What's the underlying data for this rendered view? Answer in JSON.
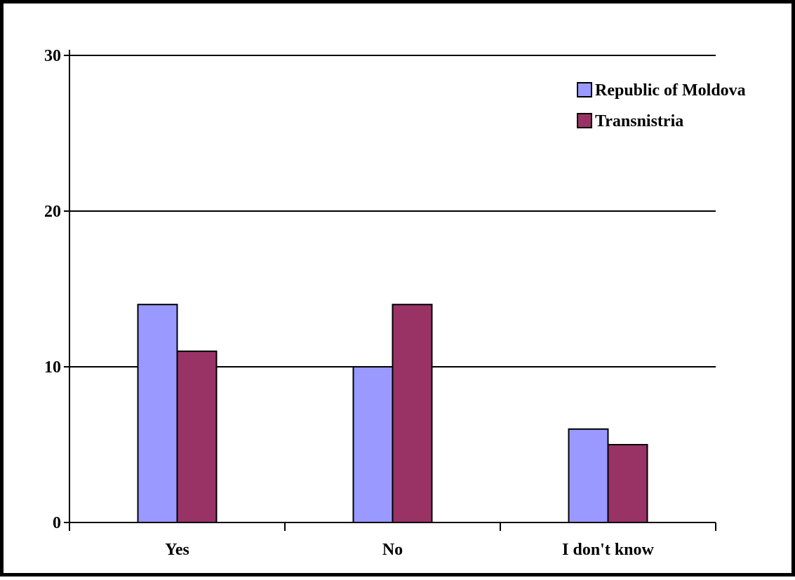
{
  "chart_data": {
    "type": "bar",
    "title": "",
    "xlabel": "",
    "ylabel": "",
    "categories": [
      "Yes",
      "No",
      "I don't know"
    ],
    "ylim": [
      0,
      30
    ],
    "yticks": [
      0,
      10,
      20,
      30
    ],
    "grid": true,
    "legend_position": "top-right",
    "series": [
      {
        "name": "Republic of Moldova",
        "color": "#9999ff",
        "values": [
          14,
          10,
          6
        ]
      },
      {
        "name": "Transnistria",
        "color": "#993366",
        "values": [
          11,
          14,
          5
        ]
      }
    ]
  }
}
